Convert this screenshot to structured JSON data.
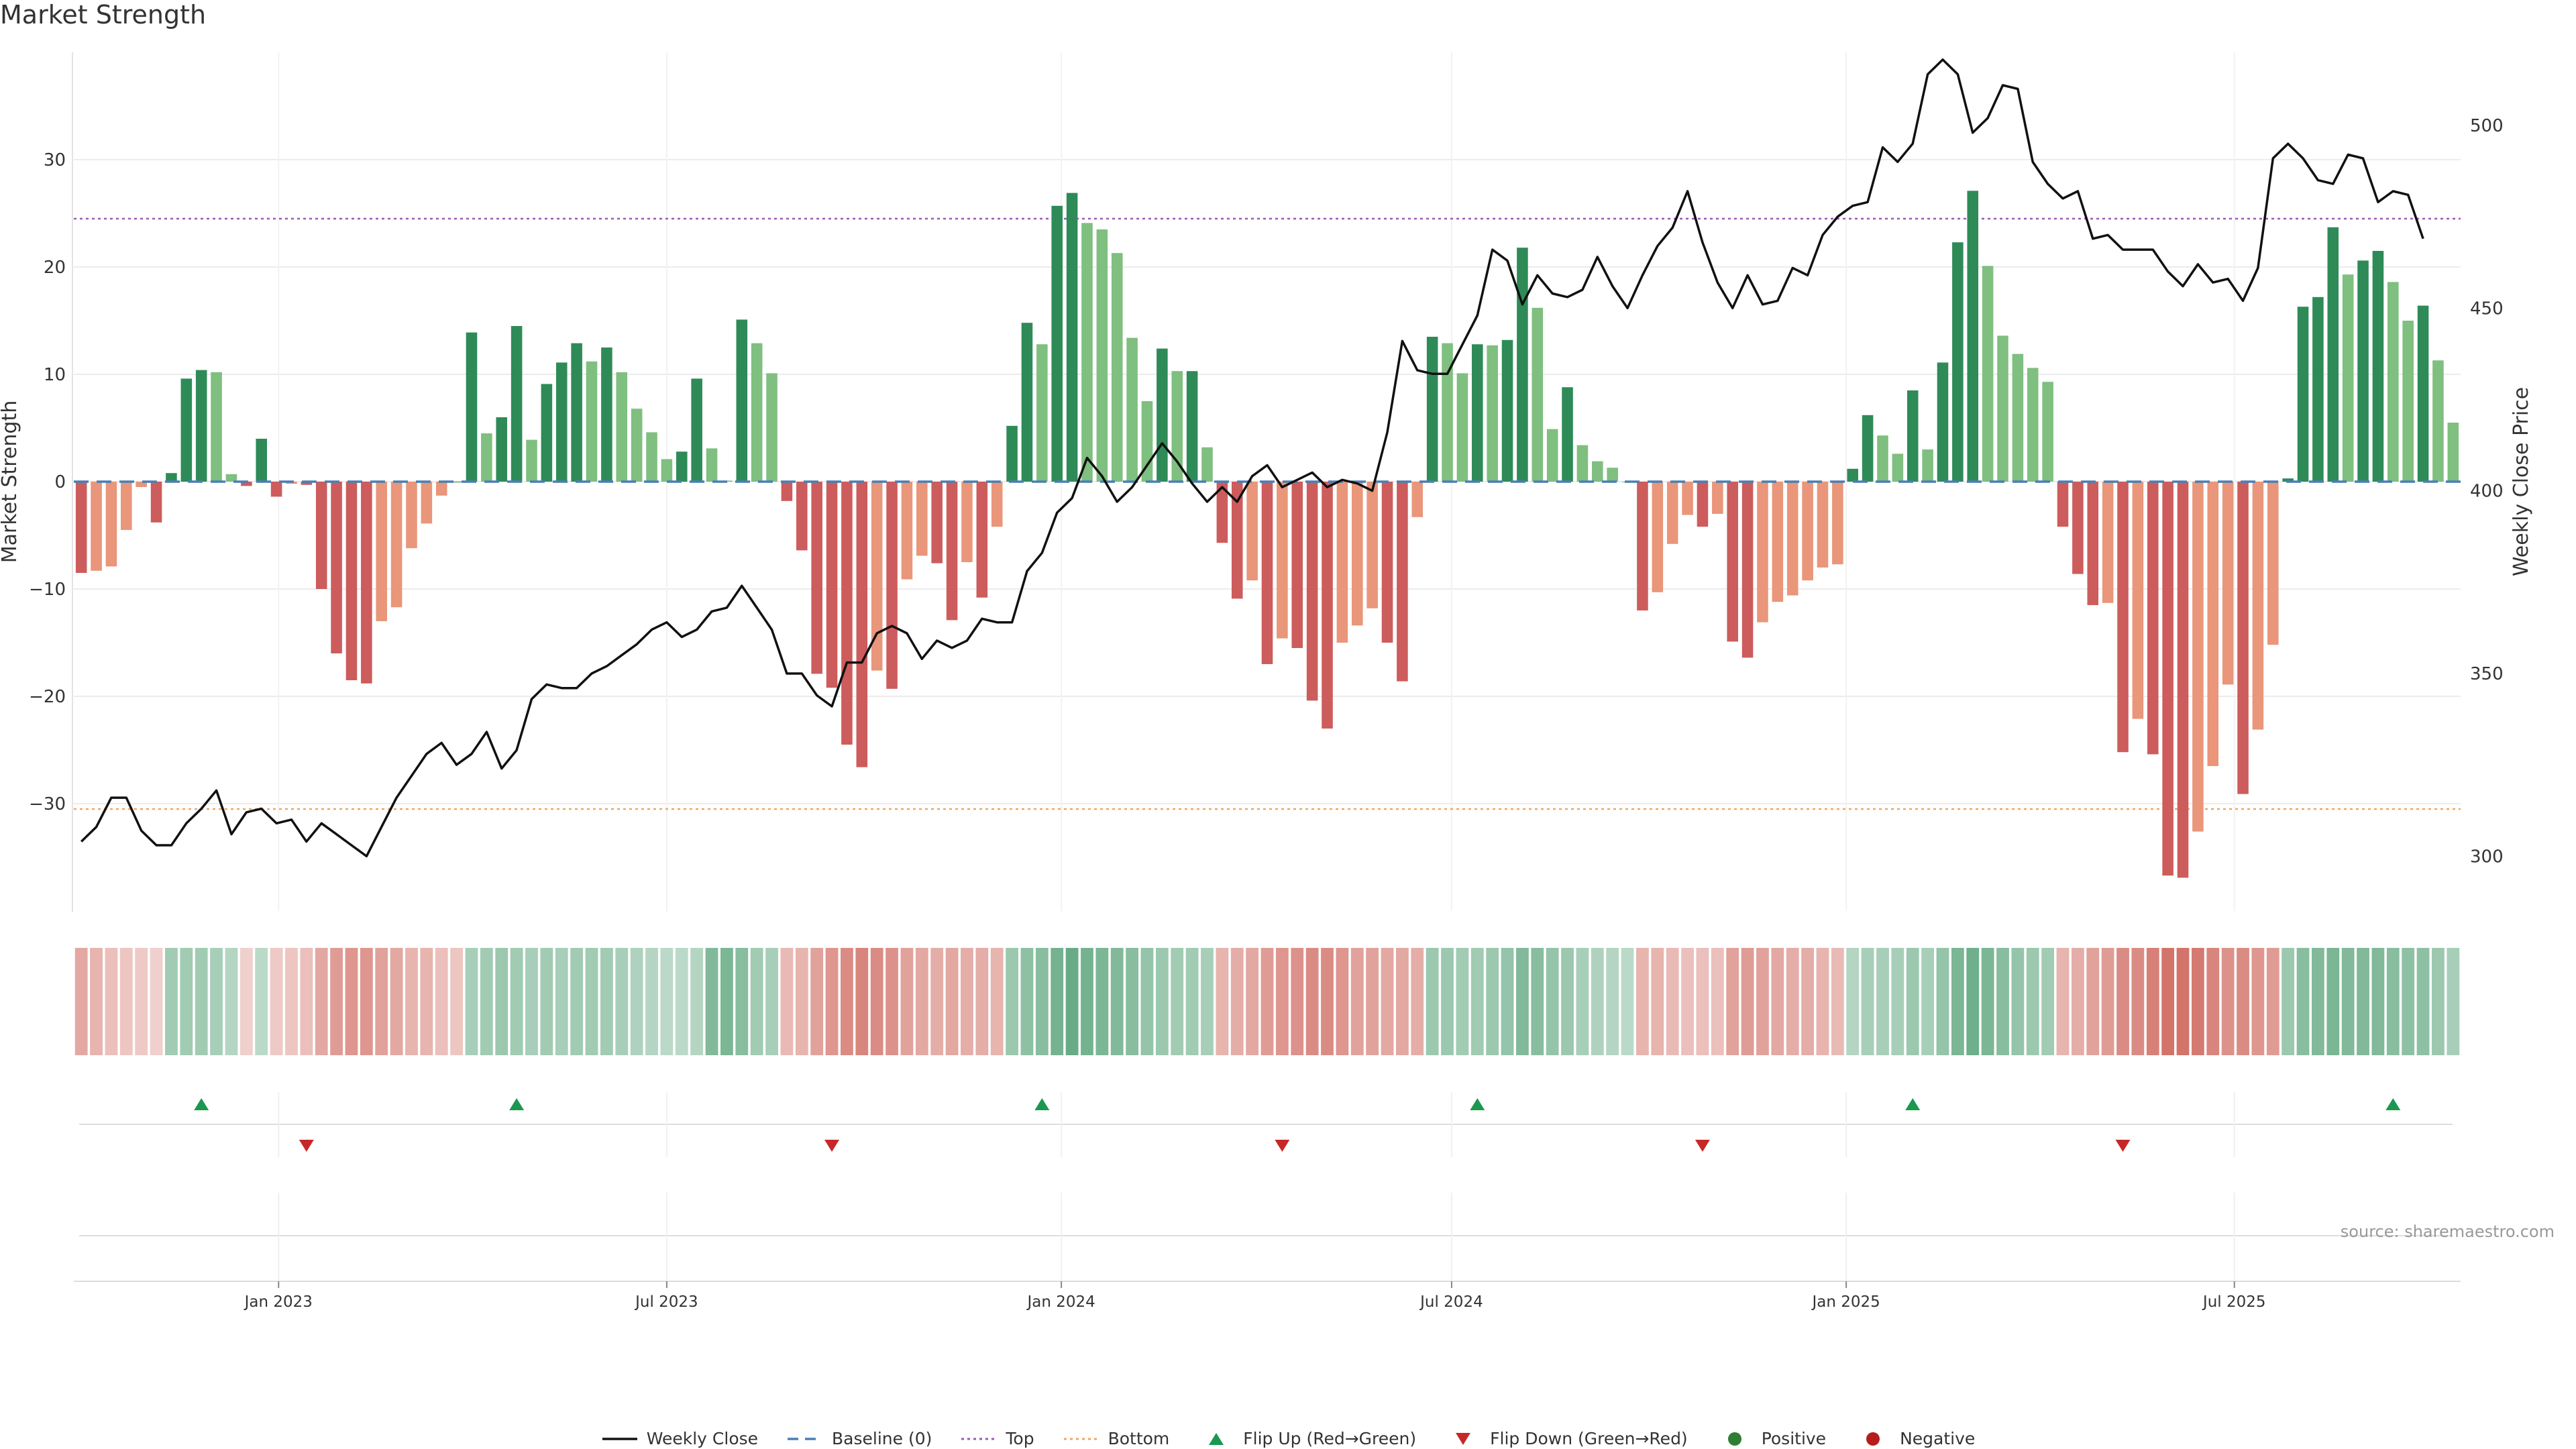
{
  "title": "Market Strength",
  "source": "source: sharemaestro.com",
  "colors": {
    "pos_dark": "#2e8b57",
    "pos_light": "#7fbf7f",
    "neg_dark": "#cd5c5c",
    "neg_light": "#e9967a",
    "close_line": "#111111",
    "baseline": "#4a7fb5",
    "top": "#9b59b6",
    "bottom": "#f4a460",
    "flip_up": "#1a9850",
    "flip_down": "#c62828"
  },
  "legend": [
    {
      "label": "Weekly Close",
      "icon": "solid-line"
    },
    {
      "label": "Baseline (0)",
      "icon": "dashed-line"
    },
    {
      "label": "Top",
      "icon": "dotted-line"
    },
    {
      "label": "Bottom",
      "icon": "dotted-line"
    },
    {
      "label": "Flip Up (Red→Green)",
      "icon": "triangle-up"
    },
    {
      "label": "Flip Down (Green→Red)",
      "icon": "triangle-down"
    },
    {
      "label": "Positive",
      "icon": "dot"
    },
    {
      "label": "Negative",
      "icon": "dot"
    }
  ],
  "chart_data": {
    "type": "bar",
    "ylabel": "Market Strength",
    "y2label": "Weekly Close Price",
    "ylim": [
      -40,
      40
    ],
    "y2lim": [
      285,
      520
    ],
    "yticks": [
      -30,
      -20,
      -10,
      0,
      10,
      20,
      30
    ],
    "yticklabels": [
      "−30",
      "−20",
      "−10",
      "0",
      "10",
      "20",
      "30"
    ],
    "y2ticks": [
      300,
      350,
      400,
      450,
      500
    ],
    "xticks": [
      "2023-01-01",
      "2023-07-01",
      "2024-01-01",
      "2024-07-01",
      "2025-01-01",
      "2025-07-01"
    ],
    "xticklabels": [
      "Jan 2023",
      "Jul 2023",
      "Jan 2024",
      "Jul 2024",
      "Jan 2025",
      "Jul 2025"
    ],
    "start_date": "2022-10-01",
    "week_days": 7,
    "top_level": 24.5,
    "bottom_level": -30.5,
    "grid": true,
    "strength": [
      -8.5,
      -8.3,
      -7.9,
      -4.5,
      -0.5,
      -3.8,
      0.8,
      9.6,
      10.4,
      10.2,
      0.7,
      -0.4,
      4.0,
      -1.4,
      -0.2,
      -0.3,
      -10.0,
      -16.0,
      -18.5,
      -18.8,
      -13.0,
      -11.7,
      -6.2,
      -3.9,
      -1.3,
      0.0,
      13.9,
      4.5,
      6.0,
      14.5,
      3.9,
      9.1,
      11.1,
      12.9,
      11.2,
      12.5,
      10.2,
      6.8,
      4.6,
      2.1,
      2.8,
      9.6,
      3.1,
      0.1,
      15.1,
      12.9,
      10.1,
      -1.8,
      -6.4,
      -17.9,
      -19.2,
      -24.5,
      -26.6,
      -17.6,
      -19.3,
      -9.1,
      -6.9,
      -7.6,
      -12.9,
      -7.5,
      -10.8,
      -4.2,
      5.2,
      14.8,
      12.8,
      25.7,
      26.9,
      24.1,
      23.5,
      21.3,
      13.4,
      7.5,
      12.4,
      10.3,
      10.3,
      3.2,
      -5.7,
      -10.9,
      -9.2,
      -17.0,
      -14.6,
      -15.5,
      -20.4,
      -23.0,
      -15.0,
      -13.4,
      -11.8,
      -15.0,
      -18.6,
      -3.3,
      13.5,
      12.9,
      10.1,
      12.8,
      12.7,
      13.2,
      21.8,
      16.2,
      4.9,
      8.8,
      3.4,
      1.9,
      1.3,
      0.0,
      -12.0,
      -10.3,
      -5.8,
      -3.1,
      -4.2,
      -3.0,
      -14.9,
      -16.4,
      -13.1,
      -11.2,
      -10.6,
      -9.2,
      -8.0,
      -7.7,
      1.2,
      6.2,
      4.3,
      2.6,
      8.5,
      3.0,
      11.1,
      22.3,
      27.1,
      20.1,
      13.6,
      11.9,
      10.6,
      9.3,
      -4.2,
      -8.6,
      -11.5,
      -11.3,
      -25.2,
      -22.1,
      -25.4,
      -36.7,
      -36.9,
      -32.6,
      -26.5,
      -18.9,
      -29.1,
      -23.1,
      -15.2,
      0.3,
      16.3,
      17.2,
      23.7,
      19.3,
      20.6,
      21.5,
      18.6,
      15.0,
      16.4,
      11.3,
      5.5
    ],
    "close": [
      304,
      308,
      316,
      316,
      307,
      303,
      303,
      309,
      313,
      318,
      306,
      312,
      313,
      309,
      310,
      304,
      309,
      306,
      303,
      300,
      308,
      316,
      322,
      328,
      331,
      325,
      328,
      334,
      324,
      329,
      343,
      347,
      346,
      346,
      350,
      352,
      355,
      358,
      362,
      364,
      360,
      362,
      367,
      368,
      374,
      368,
      362,
      350,
      350,
      344,
      341,
      353,
      353,
      361,
      363,
      361,
      354,
      359,
      357,
      359,
      365,
      364,
      364,
      378,
      383,
      394,
      398,
      409,
      404,
      397,
      401,
      407,
      413,
      408,
      402,
      397,
      401,
      397,
      404,
      407,
      401,
      403,
      405,
      401,
      403,
      402,
      400,
      416,
      441,
      433,
      432,
      432,
      440,
      448,
      466,
      463,
      451,
      459,
      454,
      453,
      455,
      464,
      456,
      450,
      459,
      467,
      472,
      482,
      468,
      457,
      450,
      459,
      451,
      452,
      461,
      459,
      470,
      475,
      478,
      479,
      494,
      490,
      495,
      514,
      518,
      514,
      498,
      502,
      511,
      510,
      490,
      484,
      480,
      482,
      469,
      470,
      466,
      466,
      466,
      460,
      456,
      462,
      457,
      458,
      452,
      461,
      491,
      495,
      491,
      485,
      484,
      492,
      491,
      479,
      482,
      481,
      469
    ],
    "intensity_bar": [
      -0.55,
      -0.45,
      -0.35,
      -0.3,
      -0.25,
      -0.2,
      0.5,
      0.5,
      0.5,
      0.45,
      0.35,
      -0.2,
      0.3,
      -0.25,
      -0.3,
      -0.35,
      -0.55,
      -0.65,
      -0.7,
      -0.7,
      -0.6,
      -0.55,
      -0.45,
      -0.45,
      -0.35,
      -0.3,
      0.45,
      0.5,
      0.55,
      0.5,
      0.45,
      0.5,
      0.45,
      0.5,
      0.5,
      0.5,
      0.45,
      0.4,
      0.35,
      0.3,
      0.3,
      0.35,
      0.75,
      0.8,
      0.7,
      0.5,
      0.45,
      -0.4,
      -0.45,
      -0.6,
      -0.7,
      -0.8,
      -0.85,
      -0.8,
      -0.75,
      -0.6,
      -0.55,
      -0.5,
      -0.55,
      -0.5,
      -0.5,
      -0.45,
      0.55,
      0.65,
      0.7,
      0.85,
      0.95,
      0.85,
      0.8,
      0.75,
      0.7,
      0.6,
      0.55,
      0.5,
      0.5,
      0.45,
      -0.45,
      -0.5,
      -0.55,
      -0.65,
      -0.7,
      -0.75,
      -0.8,
      -0.8,
      -0.7,
      -0.6,
      -0.6,
      -0.55,
      -0.55,
      -0.5,
      0.55,
      0.55,
      0.5,
      0.5,
      0.55,
      0.6,
      0.75,
      0.7,
      0.6,
      0.55,
      0.45,
      0.4,
      0.35,
      0.3,
      -0.45,
      -0.45,
      -0.4,
      -0.35,
      -0.35,
      -0.35,
      -0.6,
      -0.65,
      -0.6,
      -0.55,
      -0.5,
      -0.5,
      -0.45,
      -0.4,
      0.35,
      0.45,
      0.45,
      0.45,
      0.55,
      0.45,
      0.6,
      0.8,
      0.9,
      0.8,
      0.7,
      0.6,
      0.55,
      0.5,
      -0.45,
      -0.5,
      -0.6,
      -0.65,
      -0.8,
      -0.8,
      -0.9,
      -1.0,
      -1.0,
      -0.95,
      -0.85,
      -0.75,
      -0.8,
      -0.7,
      -0.65,
      0.55,
      0.7,
      0.75,
      0.8,
      0.75,
      0.75,
      0.75,
      0.7,
      0.65,
      0.65,
      0.55,
      0.45
    ],
    "flip_up_dates": [
      "2022-11-26",
      "2023-04-22",
      "2023-12-23",
      "2024-07-13",
      "2025-02-01",
      "2025-09-13"
    ],
    "flip_down_dates": [
      "2023-01-14",
      "2023-09-16",
      "2024-04-13",
      "2024-10-26",
      "2025-05-10"
    ]
  }
}
